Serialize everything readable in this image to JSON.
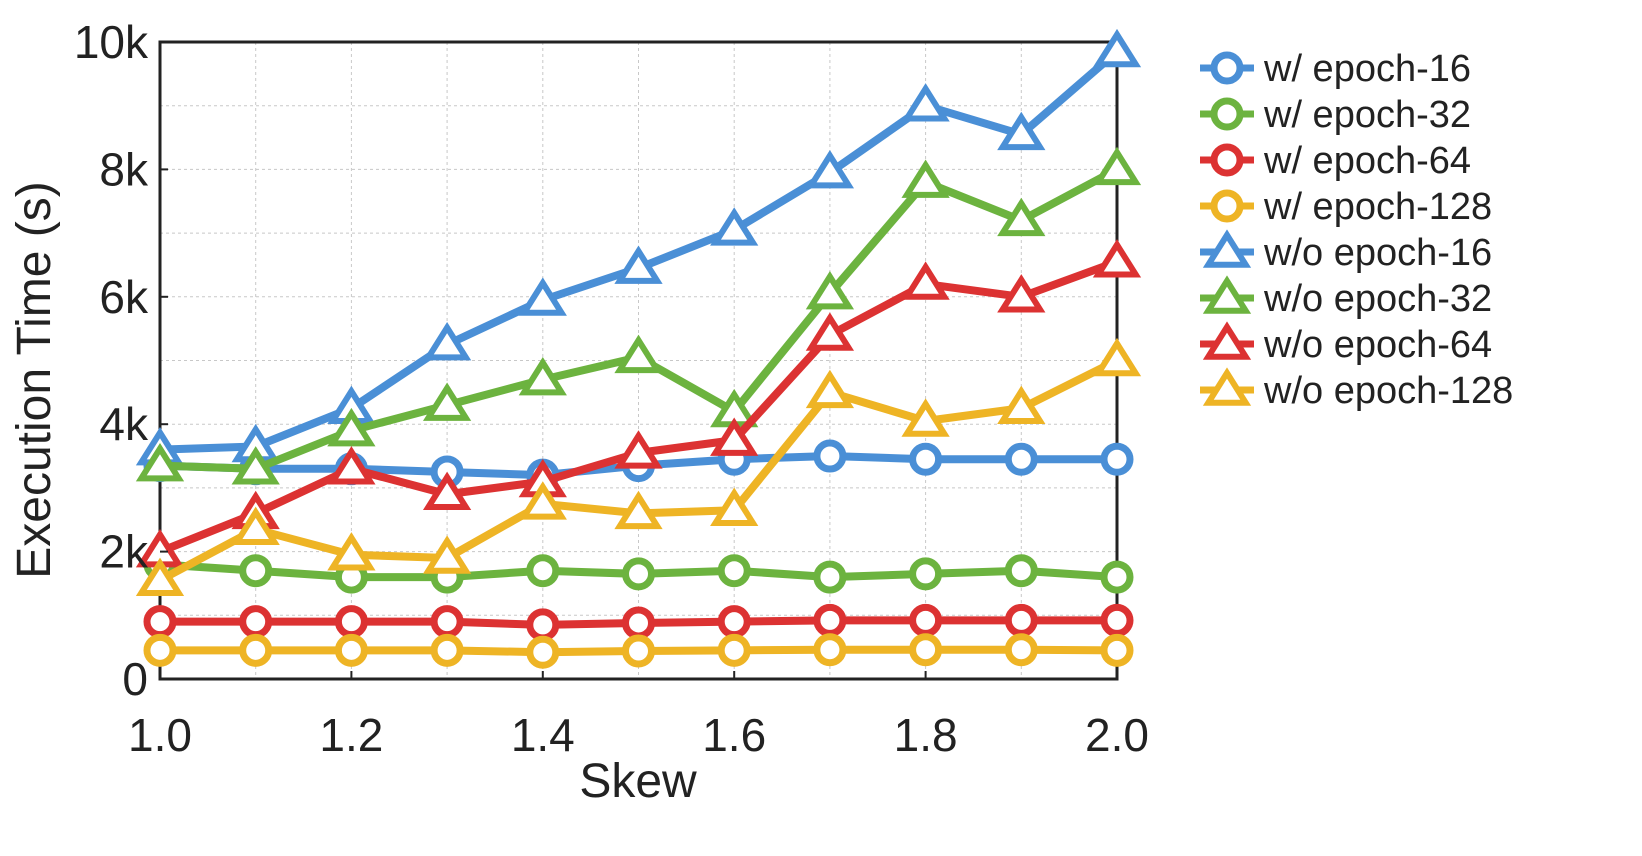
{
  "chart_data": {
    "type": "line",
    "title": "",
    "xlabel": "Skew",
    "ylabel": "Execution Time (s)",
    "xlim": [
      1.0,
      2.0
    ],
    "ylim": [
      0,
      10000
    ],
    "grid": true,
    "legend_position": "right",
    "x": [
      1.0,
      1.1,
      1.2,
      1.3,
      1.4,
      1.5,
      1.6,
      1.7,
      1.8,
      1.9,
      2.0
    ],
    "x_tick_labels": [
      "1.0",
      "1.2",
      "1.4",
      "1.6",
      "1.8",
      "2.0"
    ],
    "x_tick_values": [
      1.0,
      1.2,
      1.4,
      1.6,
      1.8,
      2.0
    ],
    "y_tick_labels": [
      "0",
      "2k",
      "4k",
      "6k",
      "8k",
      "10k"
    ],
    "y_tick_values": [
      0,
      2000,
      4000,
      6000,
      8000,
      10000
    ],
    "series": [
      {
        "name": "w/ epoch-16",
        "color": "#4A8FD6",
        "marker": "circle",
        "values": [
          3350,
          3300,
          3300,
          3250,
          3200,
          3350,
          3450,
          3500,
          3450,
          3450,
          3450
        ]
      },
      {
        "name": "w/ epoch-32",
        "color": "#6CB33F",
        "marker": "circle",
        "values": [
          1800,
          1700,
          1600,
          1600,
          1700,
          1650,
          1700,
          1600,
          1650,
          1700,
          1600
        ]
      },
      {
        "name": "w/ epoch-64",
        "color": "#DC3232",
        "marker": "circle",
        "values": [
          900,
          900,
          900,
          900,
          850,
          880,
          900,
          920,
          920,
          920,
          920
        ]
      },
      {
        "name": "w/ epoch-128",
        "color": "#EEB425",
        "marker": "circle",
        "values": [
          450,
          450,
          450,
          450,
          420,
          440,
          450,
          460,
          460,
          460,
          450
        ]
      },
      {
        "name": "w/o epoch-16",
        "color": "#4A8FD6",
        "marker": "triangle",
        "values": [
          3600,
          3650,
          4250,
          5250,
          5950,
          6450,
          7050,
          7950,
          9000,
          8550,
          9850
        ]
      },
      {
        "name": "w/o epoch-32",
        "color": "#6CB33F",
        "marker": "triangle",
        "values": [
          3350,
          3300,
          3900,
          4300,
          4700,
          5050,
          4200,
          6050,
          7800,
          7200,
          8000
        ]
      },
      {
        "name": "w/o epoch-64",
        "color": "#DC3232",
        "marker": "triangle",
        "values": [
          2000,
          2600,
          3300,
          2900,
          3100,
          3550,
          3750,
          5400,
          6200,
          6000,
          6550
        ]
      },
      {
        "name": "w/o epoch-128",
        "color": "#EEB425",
        "marker": "triangle",
        "values": [
          1550,
          2350,
          1950,
          1900,
          2750,
          2600,
          2650,
          4500,
          4050,
          4250,
          5000
        ]
      }
    ]
  }
}
